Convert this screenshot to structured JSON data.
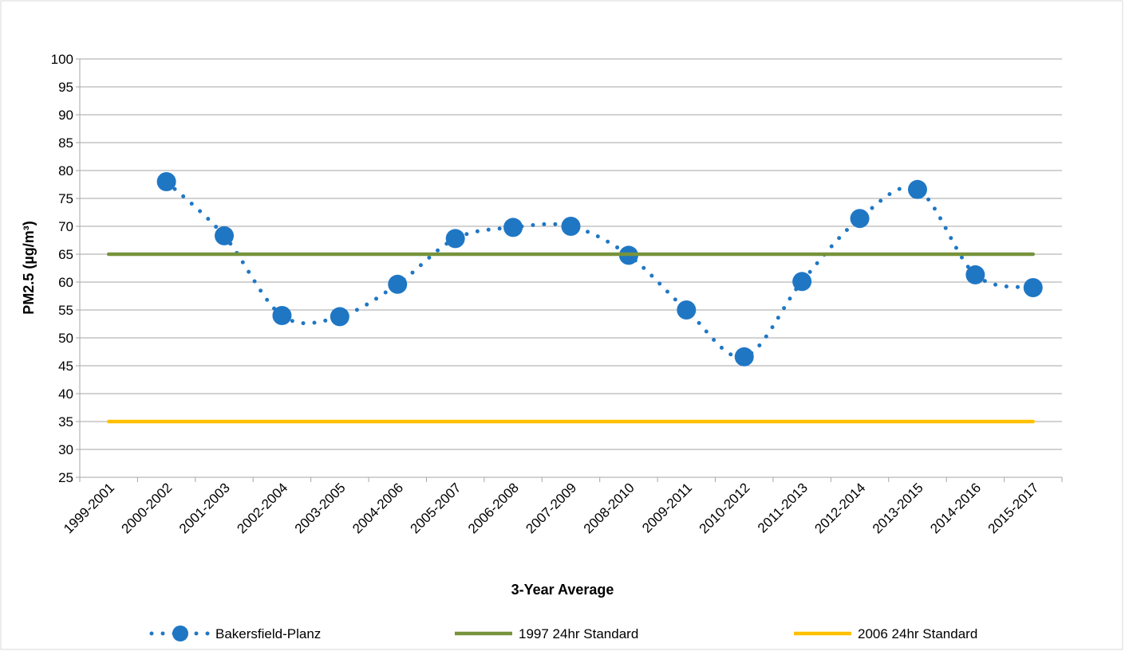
{
  "chart_data": {
    "type": "line",
    "x_label": "3-Year Average",
    "y_label": "PM2.5 (µg/m³)",
    "categories": [
      "1999-2001",
      "2000-2002",
      "2001-2003",
      "2002-2004",
      "2003-2005",
      "2004-2006",
      "2005-2007",
      "2006-2008",
      "2007-2009",
      "2008-2010",
      "2009-2011",
      "2010-2012",
      "2011-2013",
      "2012-2014",
      "2013-2015",
      "2014-2016",
      "2015-2017"
    ],
    "series": [
      {
        "name": "Bakersfield-Planz",
        "color": "#1f77c4",
        "style": "dotted-smooth-markers",
        "values": [
          null,
          78,
          68.3,
          54,
          53.8,
          59.6,
          67.8,
          69.8,
          70,
          64.8,
          55,
          46.6,
          60.1,
          71.4,
          76.6,
          61.3,
          59
        ]
      },
      {
        "name": "1997 24hr Standard",
        "color": "#77933c",
        "style": "solid",
        "values": [
          65,
          65,
          65,
          65,
          65,
          65,
          65,
          65,
          65,
          65,
          65,
          65,
          65,
          65,
          65,
          65,
          65
        ]
      },
      {
        "name": "2006 24hr Standard",
        "color": "#ffc000",
        "style": "solid",
        "values": [
          35,
          35,
          35,
          35,
          35,
          35,
          35,
          35,
          35,
          35,
          35,
          35,
          35,
          35,
          35,
          35,
          35
        ]
      }
    ],
    "ylim": [
      25,
      100
    ],
    "yticks": [
      25,
      30,
      35,
      40,
      45,
      50,
      55,
      60,
      65,
      70,
      75,
      80,
      85,
      90,
      95,
      100
    ],
    "grid": true,
    "legend": "bottom"
  }
}
